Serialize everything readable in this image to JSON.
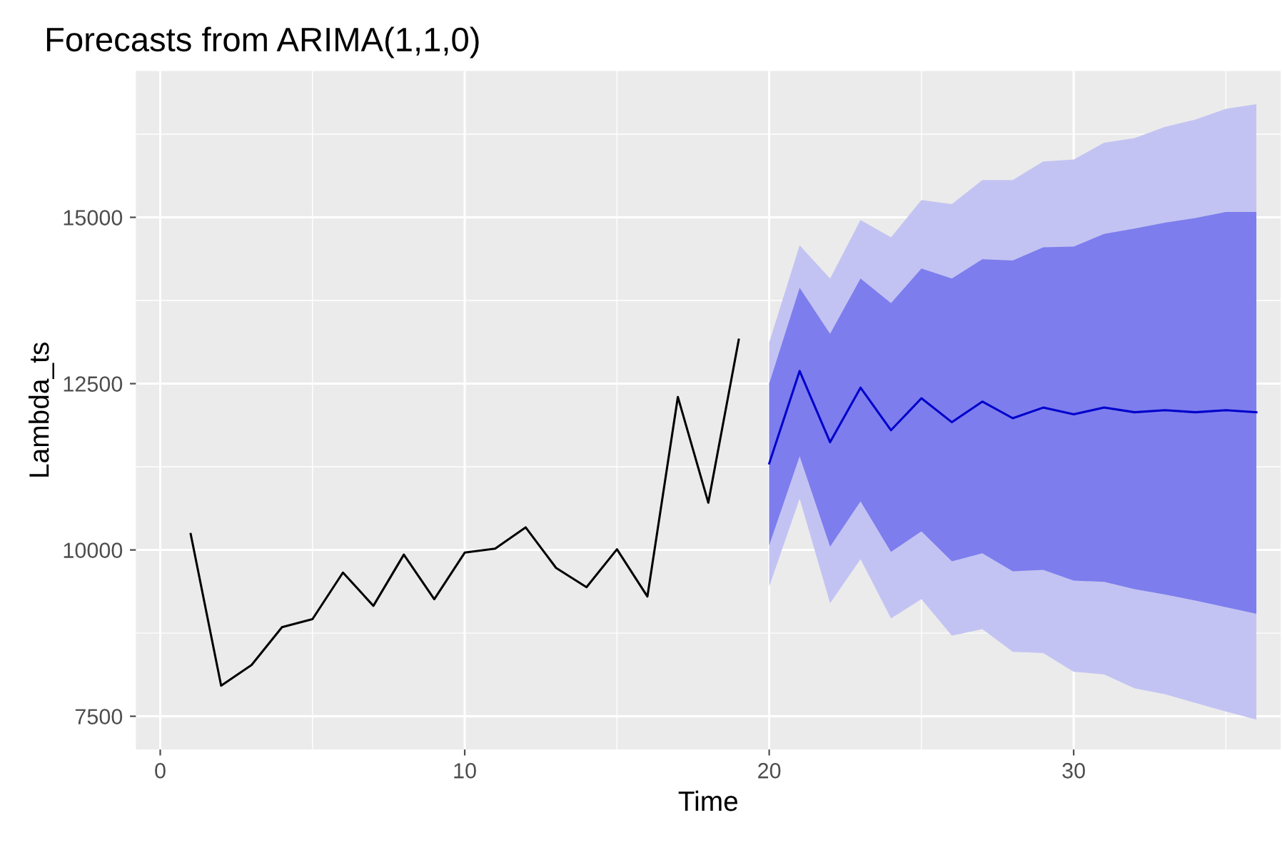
{
  "chart_data": {
    "type": "line",
    "title": "Forecasts from ARIMA(1,1,0)",
    "xlabel": "Time",
    "ylabel": "Lambda_ts",
    "xlim": [
      -0.8,
      36.8
    ],
    "ylim": [
      7000,
      17200
    ],
    "xticks": [
      0,
      10,
      20,
      30
    ],
    "yticks": [
      7500,
      10000,
      12500,
      15000
    ],
    "grid": true,
    "series": [
      {
        "type": "area",
        "color": "#c3c3f3",
        "x": [
          20,
          21,
          22,
          23,
          24,
          25,
          26,
          27,
          28,
          29,
          30,
          31,
          32,
          33,
          34,
          35,
          36
        ],
        "values": [
          null,
          null,
          null,
          null,
          null,
          null,
          null,
          null,
          null,
          null,
          null,
          null,
          null,
          null,
          null,
          null,
          null
        ],
        "lower": [
          9450,
          10770,
          9200,
          9860,
          8970,
          9260,
          8710,
          8810,
          8470,
          8450,
          8170,
          8130,
          7920,
          7830,
          7700,
          7570,
          7450
        ],
        "upper": [
          13120,
          14580,
          14080,
          14960,
          14700,
          15260,
          15200,
          15560,
          15560,
          15840,
          15870,
          16120,
          16190,
          16360,
          16470,
          16630,
          16700
        ]
      },
      {
        "type": "area",
        "color": "#7d7ded",
        "x": [
          20,
          21,
          22,
          23,
          24,
          25,
          26,
          27,
          28,
          29,
          30,
          31,
          32,
          33,
          34,
          35,
          36
        ],
        "values": [
          null,
          null,
          null,
          null,
          null,
          null,
          null,
          null,
          null,
          null,
          null,
          null,
          null,
          null,
          null,
          null,
          null
        ],
        "lower": [
          10070,
          11410,
          10050,
          10730,
          9970,
          10280,
          9830,
          9950,
          9680,
          9700,
          9540,
          9520,
          9410,
          9330,
          9240,
          9140,
          9040
        ],
        "upper": [
          12500,
          13940,
          13250,
          14080,
          13710,
          14230,
          14080,
          14370,
          14350,
          14550,
          14560,
          14750,
          14830,
          14920,
          14990,
          15080,
          15080
        ]
      },
      {
        "color": "#000000",
        "x": [
          1,
          2,
          3,
          4,
          5,
          6,
          7,
          8,
          9,
          10,
          11,
          12,
          13,
          14,
          15,
          16,
          17,
          18,
          19
        ],
        "values": [
          10240,
          7960,
          8270,
          8840,
          8960,
          9660,
          9160,
          9930,
          9260,
          9960,
          10020,
          10340,
          9730,
          9440,
          10010,
          9300,
          12300,
          10710,
          13160
        ]
      },
      {
        "color": "#0000cc",
        "x": [
          20,
          21,
          22,
          23,
          24,
          25,
          26,
          27,
          28,
          29,
          30,
          31,
          32,
          33,
          34,
          35,
          36
        ],
        "values": [
          11300,
          12690,
          11620,
          12440,
          11800,
          12280,
          11920,
          12230,
          11980,
          12140,
          12040,
          12140,
          12070,
          12100,
          12070,
          12100,
          12070
        ]
      }
    ]
  }
}
